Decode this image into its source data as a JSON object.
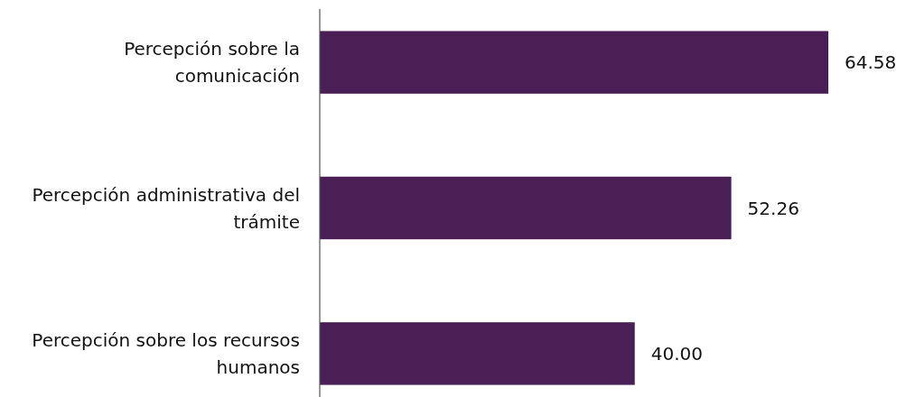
{
  "chart_data": {
    "type": "bar",
    "orientation": "horizontal",
    "categories": [
      "Percepción sobre la comunicación",
      "Percepción administrativa del trámite",
      "Percepción sobre los recursos humanos"
    ],
    "values": [
      64.58,
      52.26,
      40.0
    ],
    "value_labels": [
      "64.58",
      "52.26",
      "40.00"
    ],
    "color": "#4a1f55"
  }
}
